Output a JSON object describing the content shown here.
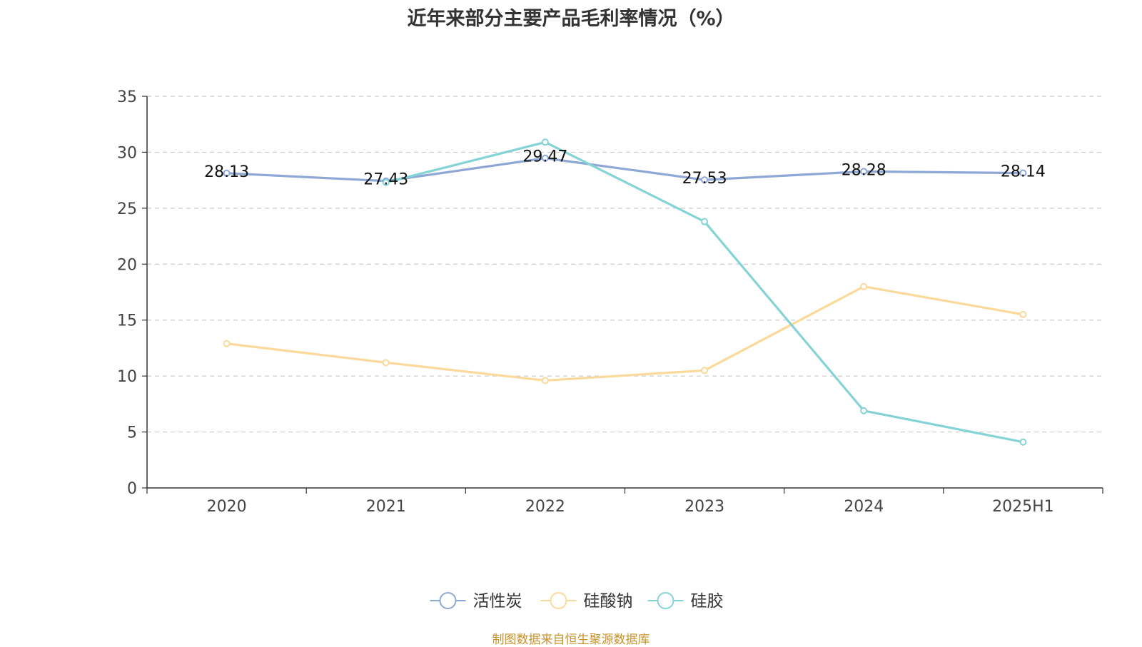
{
  "title": "近年来部分主要产品毛利率情况（%）",
  "source": "制图数据来自恒生聚源数据库",
  "chart_data": {
    "type": "line",
    "categories": [
      "2020",
      "2021",
      "2022",
      "2023",
      "2024",
      "2025H1"
    ],
    "ylim": [
      0,
      35
    ],
    "yticks": [
      0,
      5,
      10,
      15,
      20,
      25,
      30,
      35
    ],
    "grid": true,
    "legend_position": "bottom",
    "series": [
      {
        "name": "活性炭",
        "color": "#8ea8d6",
        "values": [
          28.13,
          27.43,
          29.47,
          27.53,
          28.28,
          28.14
        ],
        "show_labels": true
      },
      {
        "name": "硅酸钠",
        "color": "#fbd99a",
        "values": [
          12.9,
          11.2,
          9.6,
          10.5,
          18.0,
          15.5
        ],
        "show_labels": false
      },
      {
        "name": "硅胶",
        "color": "#84d3d6",
        "values": [
          null,
          27.3,
          30.9,
          23.8,
          6.9,
          4.1
        ],
        "show_labels": false
      }
    ]
  }
}
